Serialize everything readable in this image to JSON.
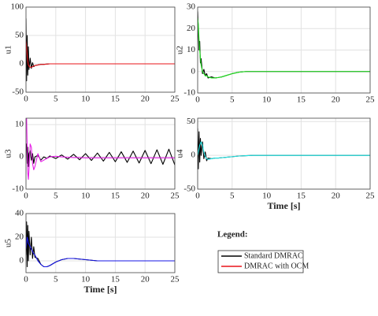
{
  "chart_data": [
    {
      "type": "line",
      "ylabel": "u1",
      "xlim": [
        0,
        25
      ],
      "xticks": [
        0,
        5,
        10,
        15,
        20,
        25
      ],
      "ylim": [
        -50,
        100
      ],
      "yticks": [
        -50,
        0,
        50,
        100
      ],
      "grid": true,
      "x": [
        0,
        0.1,
        0.2,
        0.3,
        0.4,
        0.5,
        0.7,
        0.9,
        1.1,
        1.3,
        1.5,
        2,
        2.5,
        3,
        3.5,
        4,
        5,
        6,
        7,
        8,
        9,
        10,
        11,
        12,
        13,
        14,
        15,
        16,
        17,
        18,
        19,
        20,
        21,
        22,
        23,
        24,
        25
      ],
      "series": [
        {
          "color": "#000000",
          "values": [
            80,
            -30,
            50,
            -20,
            30,
            -10,
            10,
            -8,
            2,
            -5,
            -3,
            -2,
            -1,
            -1,
            -0.5,
            0,
            0,
            0,
            0,
            0,
            0,
            0,
            0,
            0,
            0,
            0,
            0,
            0,
            0,
            0,
            0,
            0,
            0,
            0,
            0,
            0,
            0
          ]
        },
        {
          "color": "#e8141a",
          "values": [
            40,
            30,
            15,
            5,
            -2,
            -4,
            -6,
            -6,
            -5,
            -4,
            -3,
            -2,
            -1,
            -1,
            -0.5,
            0,
            0,
            0,
            0,
            0,
            0,
            0,
            0,
            0,
            0,
            0,
            0,
            0,
            0,
            0,
            0,
            0,
            0,
            0,
            0,
            0,
            0
          ]
        }
      ]
    },
    {
      "type": "line",
      "ylabel": "u2",
      "xlim": [
        0,
        25
      ],
      "xticks": [
        0,
        5,
        10,
        15,
        20,
        25
      ],
      "ylim": [
        -10,
        30
      ],
      "yticks": [
        -10,
        0,
        10,
        20,
        30
      ],
      "grid": true,
      "x": [
        0,
        0.1,
        0.2,
        0.3,
        0.4,
        0.5,
        0.7,
        0.9,
        1.1,
        1.3,
        1.5,
        2,
        2.5,
        3,
        3.5,
        4,
        5,
        6,
        7,
        8,
        9,
        10,
        11,
        12,
        13,
        14,
        15,
        16,
        17,
        18,
        19,
        20,
        21,
        22,
        23,
        24,
        25
      ],
      "series": [
        {
          "color": "#000000",
          "values": [
            28,
            18,
            10,
            14,
            4,
            6,
            -1,
            1,
            -2,
            -1,
            -3,
            -2.5,
            -3,
            -2.8,
            -2.5,
            -2,
            -1,
            -0.3,
            0,
            0,
            0,
            0,
            0,
            0,
            0,
            0,
            0,
            0,
            0,
            0,
            0,
            0,
            0,
            0,
            0,
            0,
            0
          ]
        },
        {
          "color": "#1ee61e",
          "values": [
            25,
            22,
            15,
            10,
            6,
            3,
            0,
            -1,
            -2,
            -2,
            -2.5,
            -3,
            -3,
            -2.8,
            -2.5,
            -2,
            -1,
            -0.3,
            0,
            0,
            0,
            0,
            0,
            0,
            0,
            0,
            0,
            0,
            0,
            0,
            0,
            0,
            0,
            0,
            0,
            0,
            0
          ]
        }
      ]
    },
    {
      "type": "line",
      "ylabel": "u3",
      "xlim": [
        0,
        25
      ],
      "xticks": [
        0,
        5,
        10,
        15,
        20,
        25
      ],
      "ylim": [
        -10,
        12
      ],
      "yticks": [
        -10,
        0,
        10
      ],
      "grid": true,
      "x": [
        0,
        0.1,
        0.2,
        0.3,
        0.4,
        0.5,
        0.7,
        0.9,
        1.1,
        1.3,
        1.5,
        2,
        2.5,
        3,
        3.5,
        4,
        5,
        6,
        7,
        8,
        9,
        10,
        11,
        12,
        13,
        14,
        15,
        16,
        17,
        18,
        19,
        20,
        21,
        22,
        23,
        24,
        25
      ],
      "series": [
        {
          "color": "#000000",
          "values": [
            2,
            4,
            -2,
            3,
            -3,
            1,
            2,
            -1,
            1,
            -2,
            0,
            0.5,
            -1,
            0,
            -0.5,
            0.3,
            -0.5,
            0.6,
            -0.7,
            0.8,
            -0.9,
            1,
            -1.1,
            1.2,
            -1.3,
            1.4,
            -1.5,
            1.6,
            -1.7,
            1.8,
            -1.9,
            2,
            -2.1,
            2.2,
            -2.3,
            2.4,
            -2.5
          ]
        },
        {
          "color": "#e61ee6",
          "values": [
            10,
            12,
            3,
            -5,
            -7,
            -4,
            4,
            3,
            -2,
            -4,
            -3,
            1,
            -1.5,
            -1,
            -0.5,
            0,
            0.2,
            0,
            -0.1,
            -0.2,
            -0.2,
            -0.3,
            -0.3,
            -0.3,
            -0.3,
            -0.3,
            -0.3,
            -0.3,
            -0.3,
            -0.3,
            -0.3,
            -0.3,
            -0.3,
            -0.3,
            -0.3,
            -0.3,
            -0.3
          ]
        }
      ]
    },
    {
      "type": "line",
      "ylabel": "u4",
      "xlabel": "Time [s]",
      "xlim": [
        0,
        25
      ],
      "xticks": [
        0,
        5,
        10,
        15,
        20,
        25
      ],
      "ylim": [
        -50,
        55
      ],
      "yticks": [
        -50,
        0,
        50
      ],
      "grid": true,
      "x": [
        0,
        0.1,
        0.2,
        0.3,
        0.4,
        0.5,
        0.7,
        0.9,
        1.1,
        1.3,
        1.5,
        2,
        2.5,
        3,
        3.5,
        4,
        5,
        6,
        7,
        8,
        9,
        10,
        11,
        12,
        13,
        14,
        15,
        16,
        17,
        18,
        19,
        20,
        21,
        22,
        23,
        24,
        25
      ],
      "series": [
        {
          "color": "#000000",
          "values": [
            40,
            -20,
            35,
            -10,
            25,
            0,
            20,
            -5,
            5,
            -8,
            -4,
            -5,
            -4,
            -4,
            -3.5,
            -3,
            -2,
            -1,
            -0.5,
            0,
            0,
            0,
            0,
            0,
            0,
            0,
            0,
            0,
            0,
            0,
            0,
            0,
            0,
            0,
            0,
            0,
            0
          ]
        },
        {
          "color": "#1ee6e6",
          "values": [
            0,
            5,
            10,
            15,
            18,
            20,
            15,
            5,
            -2,
            -5,
            -6,
            -5,
            -4,
            -4,
            -3.5,
            -3,
            -2,
            -1,
            -0.5,
            0,
            0,
            0,
            0,
            0,
            0,
            0,
            0,
            0,
            0,
            0,
            0,
            0,
            0,
            0,
            0,
            0,
            0
          ]
        }
      ]
    },
    {
      "type": "line",
      "ylabel": "u5",
      "xlabel": "Time [s]",
      "xlim": [
        0,
        25
      ],
      "xticks": [
        0,
        5,
        10,
        15,
        20,
        25
      ],
      "ylim": [
        -10,
        40
      ],
      "yticks": [
        0,
        20,
        40
      ],
      "grid": true,
      "x": [
        0,
        0.1,
        0.2,
        0.3,
        0.4,
        0.5,
        0.7,
        0.9,
        1.1,
        1.3,
        1.5,
        2,
        2.5,
        3,
        3.5,
        4,
        5,
        6,
        7,
        8,
        9,
        10,
        11,
        12,
        13,
        14,
        15,
        16,
        17,
        18,
        19,
        20,
        21,
        22,
        23,
        24,
        25
      ],
      "series": [
        {
          "color": "#000000",
          "values": [
            5,
            33,
            -5,
            30,
            0,
            25,
            5,
            20,
            2,
            12,
            3,
            2,
            -3,
            -5,
            -5,
            -4,
            -1,
            1,
            2,
            2,
            1.5,
            1,
            0.5,
            0,
            0,
            0,
            0,
            0,
            0,
            0,
            0,
            0,
            0,
            0,
            0,
            0,
            0
          ]
        },
        {
          "color": "#1414e6",
          "values": [
            10,
            15,
            20,
            18,
            15,
            14,
            12,
            10,
            8,
            6,
            5,
            0,
            -3,
            -5,
            -5,
            -4,
            -1,
            1,
            2,
            2,
            1.5,
            1,
            0.5,
            0,
            0,
            0,
            0,
            0,
            0,
            0,
            0,
            0,
            0,
            0,
            0,
            0,
            0
          ]
        }
      ]
    }
  ],
  "legend": {
    "title": "Legend:",
    "entries": [
      {
        "name": "Standard DMRAC",
        "color": "#000000"
      },
      {
        "name": "DMRAC with OCM",
        "color": "#e8141a"
      }
    ]
  }
}
